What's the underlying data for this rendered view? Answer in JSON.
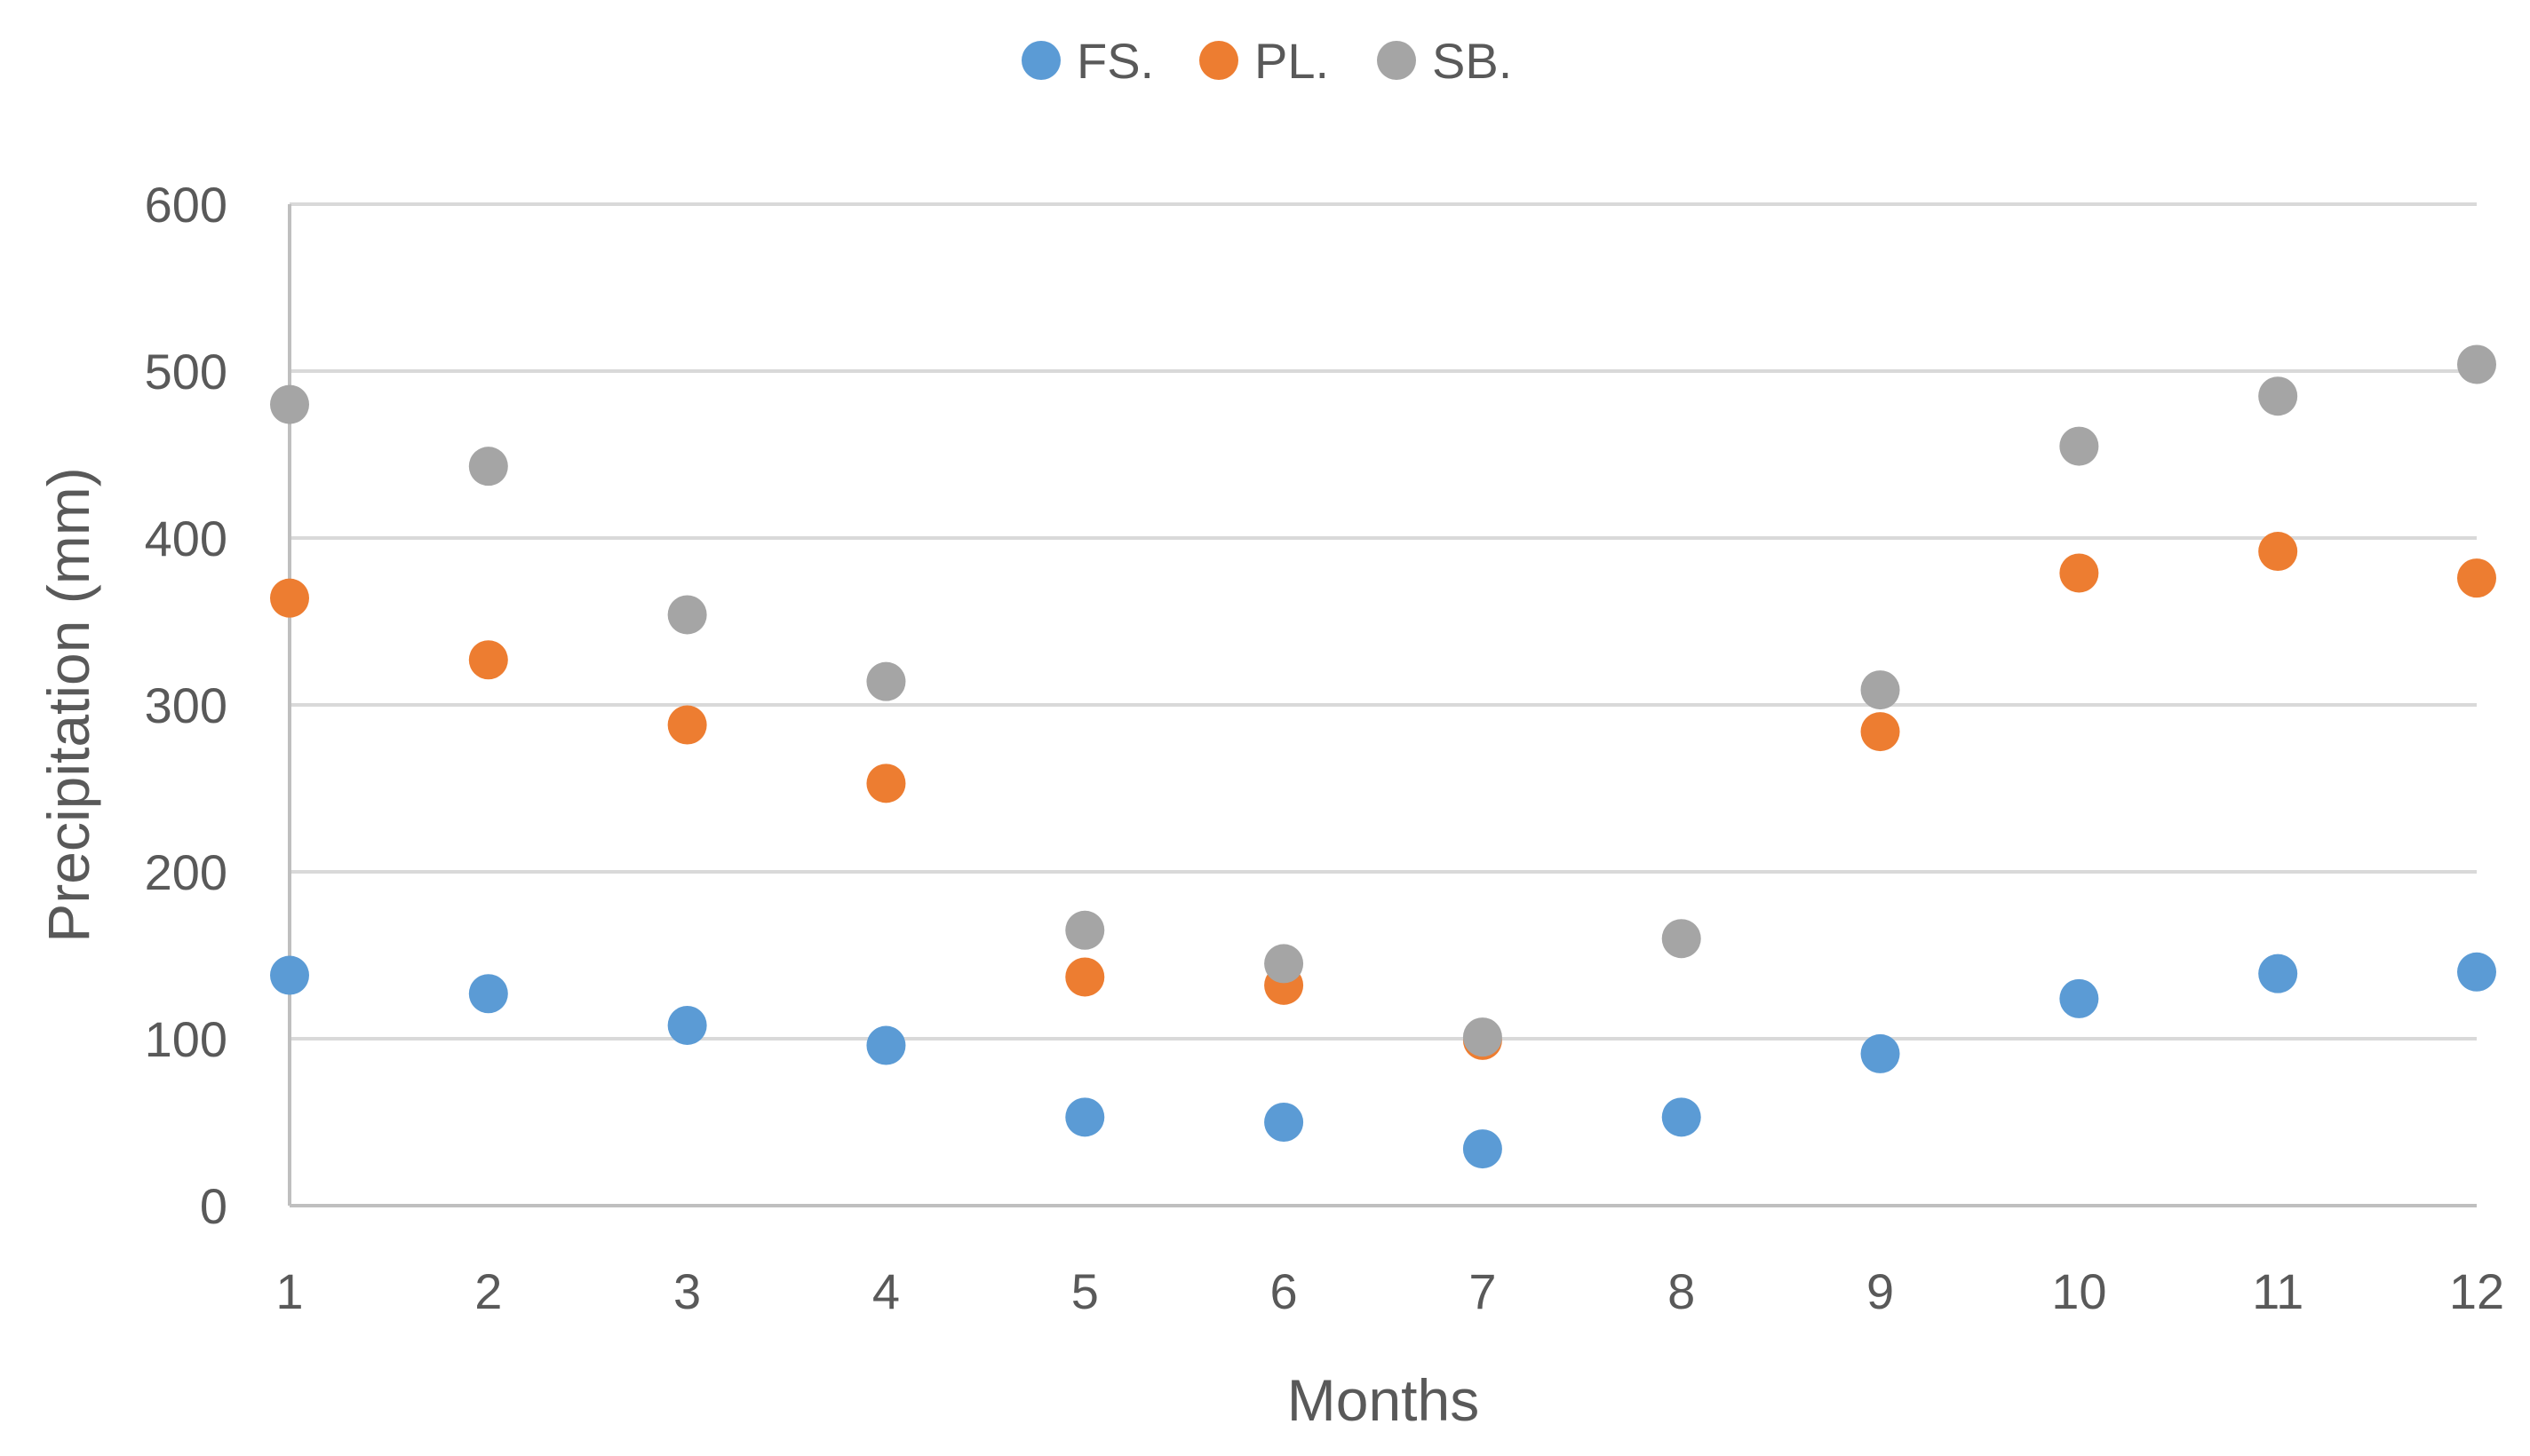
{
  "chart_data": {
    "type": "scatter",
    "title": "",
    "xlabel": "Months",
    "ylabel": "Precipitation (mm)",
    "x": [
      1,
      2,
      3,
      4,
      5,
      6,
      7,
      8,
      9,
      10,
      11,
      12
    ],
    "xticks": [
      "1",
      "2",
      "3",
      "4",
      "5",
      "6",
      "7",
      "8",
      "9",
      "10",
      "11",
      "12"
    ],
    "ylim": [
      0,
      600
    ],
    "yticks": [
      "0",
      "100",
      "200",
      "300",
      "400",
      "500",
      "600"
    ],
    "grid": true,
    "legend_position": "top-center",
    "series": [
      {
        "name": "FS.",
        "color": "#5b9bd5",
        "values": [
          138,
          127,
          108,
          96,
          53,
          50,
          34,
          53,
          91,
          124,
          139,
          140
        ]
      },
      {
        "name": "PL.",
        "color": "#ed7d31",
        "values": [
          364,
          327,
          288,
          253,
          137,
          132,
          99,
          null,
          284,
          379,
          392,
          376
        ]
      },
      {
        "name": "SB.",
        "color": "#a5a5a5",
        "values": [
          480,
          443,
          354,
          314,
          165,
          145,
          101,
          160,
          309,
          455,
          485,
          504
        ]
      }
    ]
  }
}
